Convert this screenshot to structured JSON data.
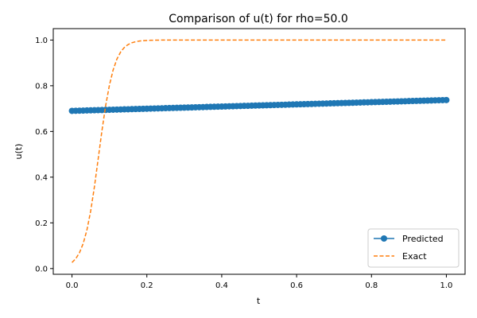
{
  "chart_data": {
    "type": "line",
    "title": "Comparison of u(t) for rho=50.0",
    "xlabel": "t",
    "ylabel": "u(t)",
    "xlim": [
      -0.05,
      1.05
    ],
    "ylim": [
      -0.025,
      1.05
    ],
    "xticks": [
      0.0,
      0.2,
      0.4,
      0.6,
      0.8,
      1.0
    ],
    "xtick_labels": [
      "0.0",
      "0.2",
      "0.4",
      "0.6",
      "0.8",
      "1.0"
    ],
    "yticks": [
      0.0,
      0.2,
      0.4,
      0.6,
      0.8,
      1.0
    ],
    "ytick_labels": [
      "0.0",
      "0.2",
      "0.4",
      "0.6",
      "0.8",
      "1.0"
    ],
    "grid": false,
    "legend_position": "lower-right",
    "series": [
      {
        "name": "Predicted",
        "style": "solid-line-circle-markers",
        "color": "#1f77b4",
        "x": [
          0.0,
          0.01,
          0.02,
          0.03,
          0.04,
          0.05,
          0.06,
          0.07,
          0.08,
          0.09,
          0.1,
          0.11,
          0.12,
          0.13,
          0.14,
          0.15,
          0.16,
          0.17,
          0.18,
          0.19,
          0.2,
          0.21,
          0.22,
          0.23,
          0.24,
          0.25,
          0.26,
          0.27,
          0.28,
          0.29,
          0.3,
          0.31,
          0.32,
          0.33,
          0.34,
          0.35,
          0.36,
          0.37,
          0.38,
          0.39,
          0.4,
          0.41,
          0.42,
          0.43,
          0.44,
          0.45,
          0.46,
          0.47,
          0.48,
          0.49,
          0.5,
          0.51,
          0.52,
          0.53,
          0.54,
          0.55,
          0.56,
          0.57,
          0.58,
          0.59,
          0.6,
          0.61,
          0.62,
          0.63,
          0.64,
          0.65,
          0.66,
          0.67,
          0.68,
          0.69,
          0.7,
          0.71,
          0.72,
          0.73,
          0.74,
          0.75,
          0.76,
          0.77,
          0.78,
          0.79,
          0.8,
          0.81,
          0.82,
          0.83,
          0.84,
          0.85,
          0.86,
          0.87,
          0.88,
          0.89,
          0.9,
          0.91,
          0.92,
          0.93,
          0.94,
          0.95,
          0.96,
          0.97,
          0.98,
          0.99,
          1.0
        ],
        "y": [
          0.69,
          0.6905,
          0.691,
          0.6914,
          0.6919,
          0.6924,
          0.6929,
          0.6933,
          0.6938,
          0.6943,
          0.6948,
          0.6952,
          0.6957,
          0.6962,
          0.6967,
          0.6971,
          0.6976,
          0.6981,
          0.6986,
          0.699,
          0.6995,
          0.7,
          0.7005,
          0.7009,
          0.7014,
          0.7019,
          0.7024,
          0.7028,
          0.7033,
          0.7038,
          0.7043,
          0.7047,
          0.7052,
          0.7057,
          0.7062,
          0.7066,
          0.7071,
          0.7076,
          0.7081,
          0.7085,
          0.709,
          0.7095,
          0.71,
          0.7104,
          0.7109,
          0.7114,
          0.7119,
          0.7123,
          0.7128,
          0.7133,
          0.7138,
          0.7142,
          0.7147,
          0.7152,
          0.7157,
          0.7161,
          0.7166,
          0.7171,
          0.7176,
          0.718,
          0.7185,
          0.719,
          0.7195,
          0.7199,
          0.7204,
          0.7209,
          0.7214,
          0.7218,
          0.7223,
          0.7228,
          0.7233,
          0.7237,
          0.7242,
          0.7247,
          0.7252,
          0.7256,
          0.7261,
          0.7266,
          0.7271,
          0.7275,
          0.728,
          0.7285,
          0.729,
          0.7294,
          0.7299,
          0.7304,
          0.7309,
          0.7313,
          0.7318,
          0.7323,
          0.7328,
          0.7332,
          0.7337,
          0.7342,
          0.7347,
          0.7351,
          0.7356,
          0.7361,
          0.7366,
          0.737,
          0.7375
        ]
      },
      {
        "name": "Exact",
        "style": "dashed-line",
        "color": "#ff7f0e",
        "x": [
          0.0,
          0.01,
          0.02,
          0.03,
          0.04,
          0.05,
          0.06,
          0.07,
          0.08,
          0.09,
          0.1,
          0.11,
          0.12,
          0.13,
          0.14,
          0.15,
          0.16,
          0.17,
          0.18,
          0.19,
          0.2,
          0.21,
          0.22,
          0.23,
          0.24,
          0.25,
          0.26,
          0.27,
          0.28,
          0.29,
          0.3,
          0.31,
          0.32,
          0.33,
          0.34,
          0.35,
          0.36,
          0.37,
          0.38,
          0.39,
          0.4,
          0.41,
          0.42,
          0.43,
          0.44,
          0.45,
          0.46,
          0.47,
          0.48,
          0.49,
          0.5,
          0.51,
          0.52,
          0.53,
          0.54,
          0.55,
          0.56,
          0.57,
          0.58,
          0.59,
          0.6,
          0.61,
          0.62,
          0.63,
          0.64,
          0.65,
          0.66,
          0.67,
          0.68,
          0.69,
          0.7,
          0.71,
          0.72,
          0.73,
          0.74,
          0.75,
          0.76,
          0.77,
          0.78,
          0.79,
          0.8,
          0.81,
          0.82,
          0.83,
          0.84,
          0.85,
          0.86,
          0.87,
          0.88,
          0.89,
          0.9,
          0.91,
          0.92,
          0.93,
          0.94,
          0.95,
          0.96,
          0.97,
          0.98,
          0.99,
          1.0
        ],
        "y": [
          0.0266,
          0.0431,
          0.0693,
          0.1097,
          0.1694,
          0.2524,
          0.3586,
          0.4803,
          0.6031,
          0.7134,
          0.8025,
          0.8696,
          0.9167,
          0.9479,
          0.9679,
          0.9804,
          0.9881,
          0.9928,
          0.9957,
          0.9974,
          0.9984,
          0.9991,
          0.9994,
          0.9997,
          0.9998,
          0.9999,
          0.9999,
          1.0,
          1.0,
          1.0,
          1.0,
          1.0,
          1.0,
          1.0,
          1.0,
          1.0,
          1.0,
          1.0,
          1.0,
          1.0,
          1.0,
          1.0,
          1.0,
          1.0,
          1.0,
          1.0,
          1.0,
          1.0,
          1.0,
          1.0,
          1.0,
          1.0,
          1.0,
          1.0,
          1.0,
          1.0,
          1.0,
          1.0,
          1.0,
          1.0,
          1.0,
          1.0,
          1.0,
          1.0,
          1.0,
          1.0,
          1.0,
          1.0,
          1.0,
          1.0,
          1.0,
          1.0,
          1.0,
          1.0,
          1.0,
          1.0,
          1.0,
          1.0,
          1.0,
          1.0,
          1.0,
          1.0,
          1.0,
          1.0,
          1.0,
          1.0,
          1.0,
          1.0,
          1.0,
          1.0,
          1.0,
          1.0,
          1.0,
          1.0,
          1.0,
          1.0,
          1.0,
          1.0,
          1.0,
          1.0,
          1.0
        ]
      }
    ]
  }
}
